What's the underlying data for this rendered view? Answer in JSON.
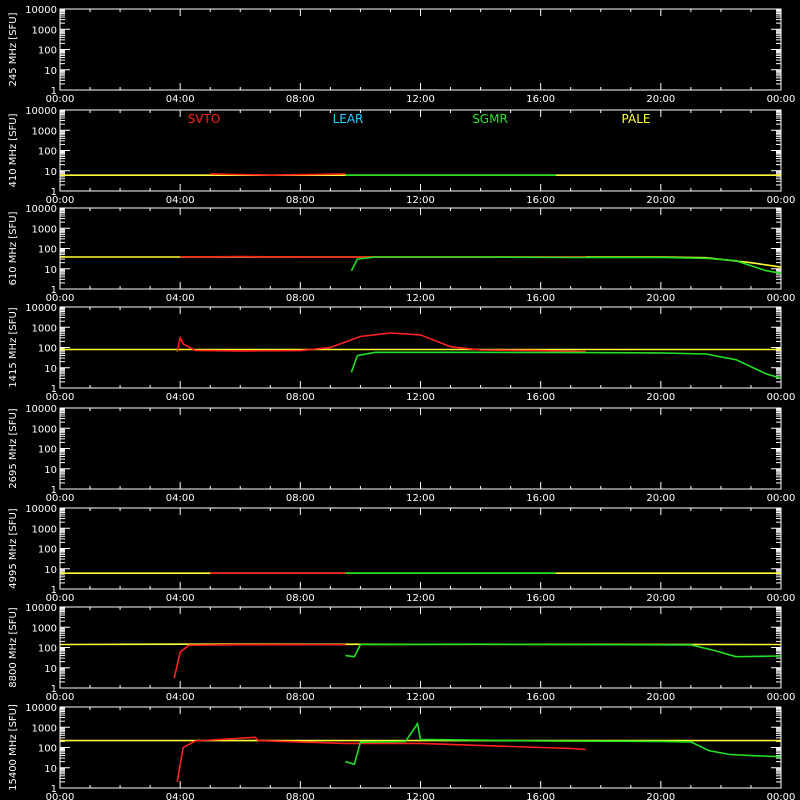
{
  "chart_data": {
    "type": "line",
    "x_ticks": [
      "00:00",
      "04:00",
      "08:00",
      "12:00",
      "16:00",
      "20:00",
      "00:00"
    ],
    "x_range_hours": [
      0,
      24
    ],
    "y_ticks": [
      "1",
      "10",
      "100",
      "1000",
      "10000"
    ],
    "y_scale": "log",
    "ylim": [
      1,
      10000
    ],
    "unit_label": "[SFU]",
    "legend": [
      {
        "name": "SVTO",
        "color": "#ff2020"
      },
      {
        "name": "LEAR",
        "color": "#22d0ff"
      },
      {
        "name": "SGMR",
        "color": "#22e022"
      },
      {
        "name": "PALE",
        "color": "#ffff33"
      }
    ],
    "panels": [
      {
        "freq": "245 MHz",
        "ylabel": "245 MHz [SFU]",
        "series": []
      },
      {
        "freq": "410 MHz",
        "ylabel": "410 MHz [SFU]",
        "series": [
          {
            "station": "PALE",
            "points": [
              [
                0,
                6
              ],
              [
                5,
                6
              ],
              [
                16.5,
                6
              ],
              [
                24,
                6
              ]
            ]
          },
          {
            "station": "SVTO",
            "points": [
              [
                5,
                7
              ],
              [
                7,
                6
              ],
              [
                9.5,
                7
              ]
            ]
          },
          {
            "station": "SGMR",
            "points": [
              [
                9.5,
                6
              ],
              [
                12,
                6
              ],
              [
                16.5,
                6
              ]
            ]
          }
        ]
      },
      {
        "freq": "610 MHz",
        "ylabel": "610 MHz [SFU]",
        "series": [
          {
            "station": "PALE",
            "points": [
              [
                0,
                38
              ],
              [
                4,
                38
              ],
              [
                20,
                38
              ],
              [
                21.5,
                35
              ],
              [
                23,
                20
              ],
              [
                24,
                12
              ]
            ]
          },
          {
            "station": "SVTO",
            "points": [
              [
                4,
                38
              ],
              [
                6,
                40
              ],
              [
                8,
                38
              ],
              [
                10,
                38
              ],
              [
                12,
                38
              ],
              [
                16,
                38
              ],
              [
                17.5,
                38
              ]
            ]
          },
          {
            "station": "SGMR",
            "points": [
              [
                9.7,
                8
              ],
              [
                9.9,
                30
              ],
              [
                10.5,
                38
              ],
              [
                14,
                38
              ],
              [
                17,
                36
              ],
              [
                20,
                36
              ],
              [
                21.5,
                33
              ],
              [
                22.5,
                25
              ],
              [
                23.5,
                8
              ],
              [
                24,
                6
              ]
            ]
          }
        ]
      },
      {
        "freq": "1415 MHz",
        "ylabel": "1415 MHz [SFU]",
        "series": [
          {
            "station": "PALE",
            "points": [
              [
                0,
                80
              ],
              [
                4,
                80
              ],
              [
                24,
                80
              ]
            ]
          },
          {
            "station": "SVTO",
            "points": [
              [
                3.9,
                60
              ],
              [
                4,
                300
              ],
              [
                4.1,
                150
              ],
              [
                4.5,
                72
              ],
              [
                6,
                68
              ],
              [
                8,
                70
              ],
              [
                9,
                100
              ],
              [
                10,
                350
              ],
              [
                11,
                520
              ],
              [
                12,
                420
              ],
              [
                13,
                110
              ],
              [
                14,
                75
              ],
              [
                16,
                70
              ],
              [
                17.5,
                62
              ]
            ]
          },
          {
            "station": "SGMR",
            "points": [
              [
                9.7,
                6
              ],
              [
                9.9,
                40
              ],
              [
                10.5,
                58
              ],
              [
                14,
                58
              ],
              [
                17,
                56
              ],
              [
                20,
                54
              ],
              [
                21.5,
                48
              ],
              [
                22.5,
                25
              ],
              [
                23.5,
                5
              ],
              [
                24,
                3
              ]
            ]
          }
        ]
      },
      {
        "freq": "2695 MHz",
        "ylabel": "2695 MHz [SFU]",
        "series": []
      },
      {
        "freq": "4995 MHz",
        "ylabel": "4995 MHz [SFU]",
        "series": [
          {
            "station": "PALE",
            "points": [
              [
                0,
                6
              ],
              [
                5,
                6
              ],
              [
                16.5,
                6
              ],
              [
                24,
                6
              ]
            ]
          },
          {
            "station": "SVTO",
            "points": [
              [
                5,
                6
              ],
              [
                7,
                6
              ],
              [
                9.5,
                6
              ]
            ]
          },
          {
            "station": "SGMR",
            "points": [
              [
                9.5,
                6
              ],
              [
                12,
                6
              ],
              [
                16.5,
                6
              ]
            ]
          }
        ]
      },
      {
        "freq": "8800 MHz",
        "ylabel": "8800 MHz [SFU]",
        "series": [
          {
            "station": "PALE",
            "points": [
              [
                0,
                140
              ],
              [
                4,
                145
              ],
              [
                24,
                140
              ]
            ]
          },
          {
            "station": "SVTO",
            "points": [
              [
                3.8,
                3
              ],
              [
                4,
                60
              ],
              [
                4.3,
                130
              ],
              [
                6,
                138
              ],
              [
                9.5,
                138
              ]
            ]
          },
          {
            "station": "SGMR",
            "points": [
              [
                9.5,
                40
              ],
              [
                9.8,
                35
              ],
              [
                10,
                140
              ],
              [
                14,
                145
              ],
              [
                17,
                140
              ],
              [
                21,
                135
              ],
              [
                21.8,
                70
              ],
              [
                22.5,
                35
              ],
              [
                24,
                38
              ]
            ]
          }
        ]
      },
      {
        "freq": "15400 MHz",
        "ylabel": "15400 MHz [SFU]",
        "series": [
          {
            "station": "PALE",
            "points": [
              [
                0,
                220
              ],
              [
                4,
                220
              ],
              [
                24,
                220
              ]
            ]
          },
          {
            "station": "SVTO",
            "points": [
              [
                3.9,
                2
              ],
              [
                4.1,
                100
              ],
              [
                4.5,
                210
              ],
              [
                6.5,
                320
              ],
              [
                6.6,
                220
              ],
              [
                9.5,
                160
              ],
              [
                12,
                160
              ],
              [
                16,
                100
              ],
              [
                17,
                90
              ],
              [
                17.5,
                80
              ]
            ]
          },
          {
            "station": "SGMR",
            "points": [
              [
                9.5,
                20
              ],
              [
                9.8,
                15
              ],
              [
                10,
                180
              ],
              [
                11.5,
                200
              ],
              [
                11.9,
                1500
              ],
              [
                12,
                250
              ],
              [
                16,
                210
              ],
              [
                20,
                200
              ],
              [
                21,
                190
              ],
              [
                21.6,
                70
              ],
              [
                22.3,
                45
              ],
              [
                23,
                40
              ],
              [
                24,
                35
              ]
            ]
          }
        ]
      }
    ]
  }
}
